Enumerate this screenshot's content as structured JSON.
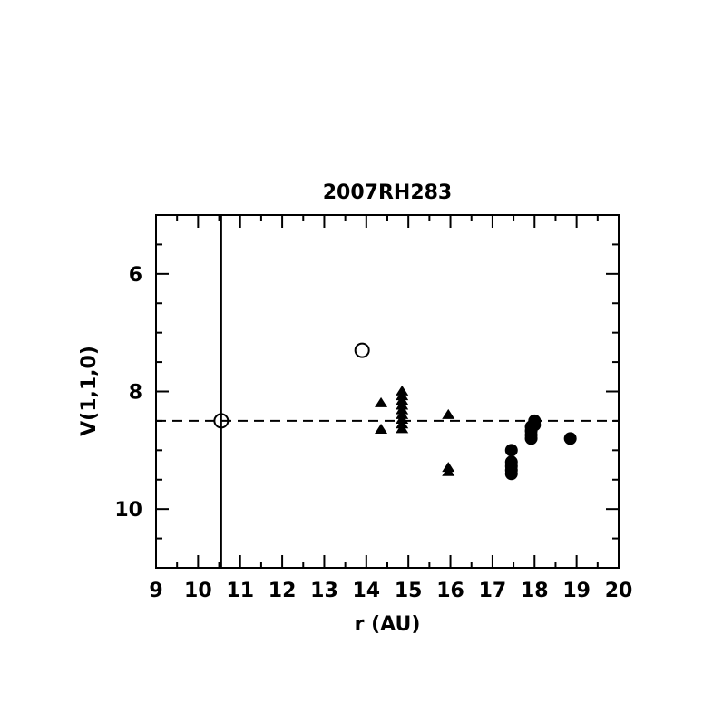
{
  "chart_data": {
    "type": "scatter",
    "title": "2007RH283",
    "xlabel": "r (AU)",
    "ylabel": "V(1,1,0)",
    "xlim": [
      9,
      20
    ],
    "ylim": [
      11,
      5
    ],
    "y_inverted": true,
    "grid": false,
    "x_ticks": [
      "9",
      "10",
      "11",
      "12",
      "13",
      "14",
      "15",
      "16",
      "17",
      "18",
      "19",
      "20"
    ],
    "y_ticks": [
      "6",
      "8",
      "10"
    ],
    "reference_lines": [
      {
        "orientation": "horizontal",
        "value": 8.5,
        "style": "dashed"
      },
      {
        "orientation": "vertical",
        "value": 10.55,
        "style": "solid"
      }
    ],
    "series": [
      {
        "marker": "open-circle",
        "points": [
          [
            10.55,
            8.5
          ],
          [
            13.9,
            7.3
          ]
        ]
      },
      {
        "marker": "filled-triangle",
        "points": [
          [
            14.35,
            8.2
          ],
          [
            14.35,
            8.65
          ],
          [
            14.85,
            8.0
          ],
          [
            14.85,
            8.08
          ],
          [
            14.85,
            8.16
          ],
          [
            14.85,
            8.24
          ],
          [
            14.85,
            8.32
          ],
          [
            14.85,
            8.4
          ],
          [
            14.85,
            8.48
          ],
          [
            14.85,
            8.56
          ],
          [
            14.85,
            8.64
          ],
          [
            15.95,
            8.4
          ],
          [
            15.95,
            9.3
          ],
          [
            15.95,
            9.37
          ]
        ]
      },
      {
        "marker": "filled-circle",
        "points": [
          [
            17.45,
            9.0
          ],
          [
            17.45,
            9.2
          ],
          [
            17.45,
            9.27
          ],
          [
            17.45,
            9.34
          ],
          [
            17.45,
            9.4
          ],
          [
            17.92,
            8.6
          ],
          [
            17.92,
            8.67
          ],
          [
            17.92,
            8.74
          ],
          [
            17.92,
            8.8
          ],
          [
            18.0,
            8.5
          ],
          [
            18.0,
            8.57
          ],
          [
            18.85,
            8.8
          ]
        ]
      }
    ]
  }
}
